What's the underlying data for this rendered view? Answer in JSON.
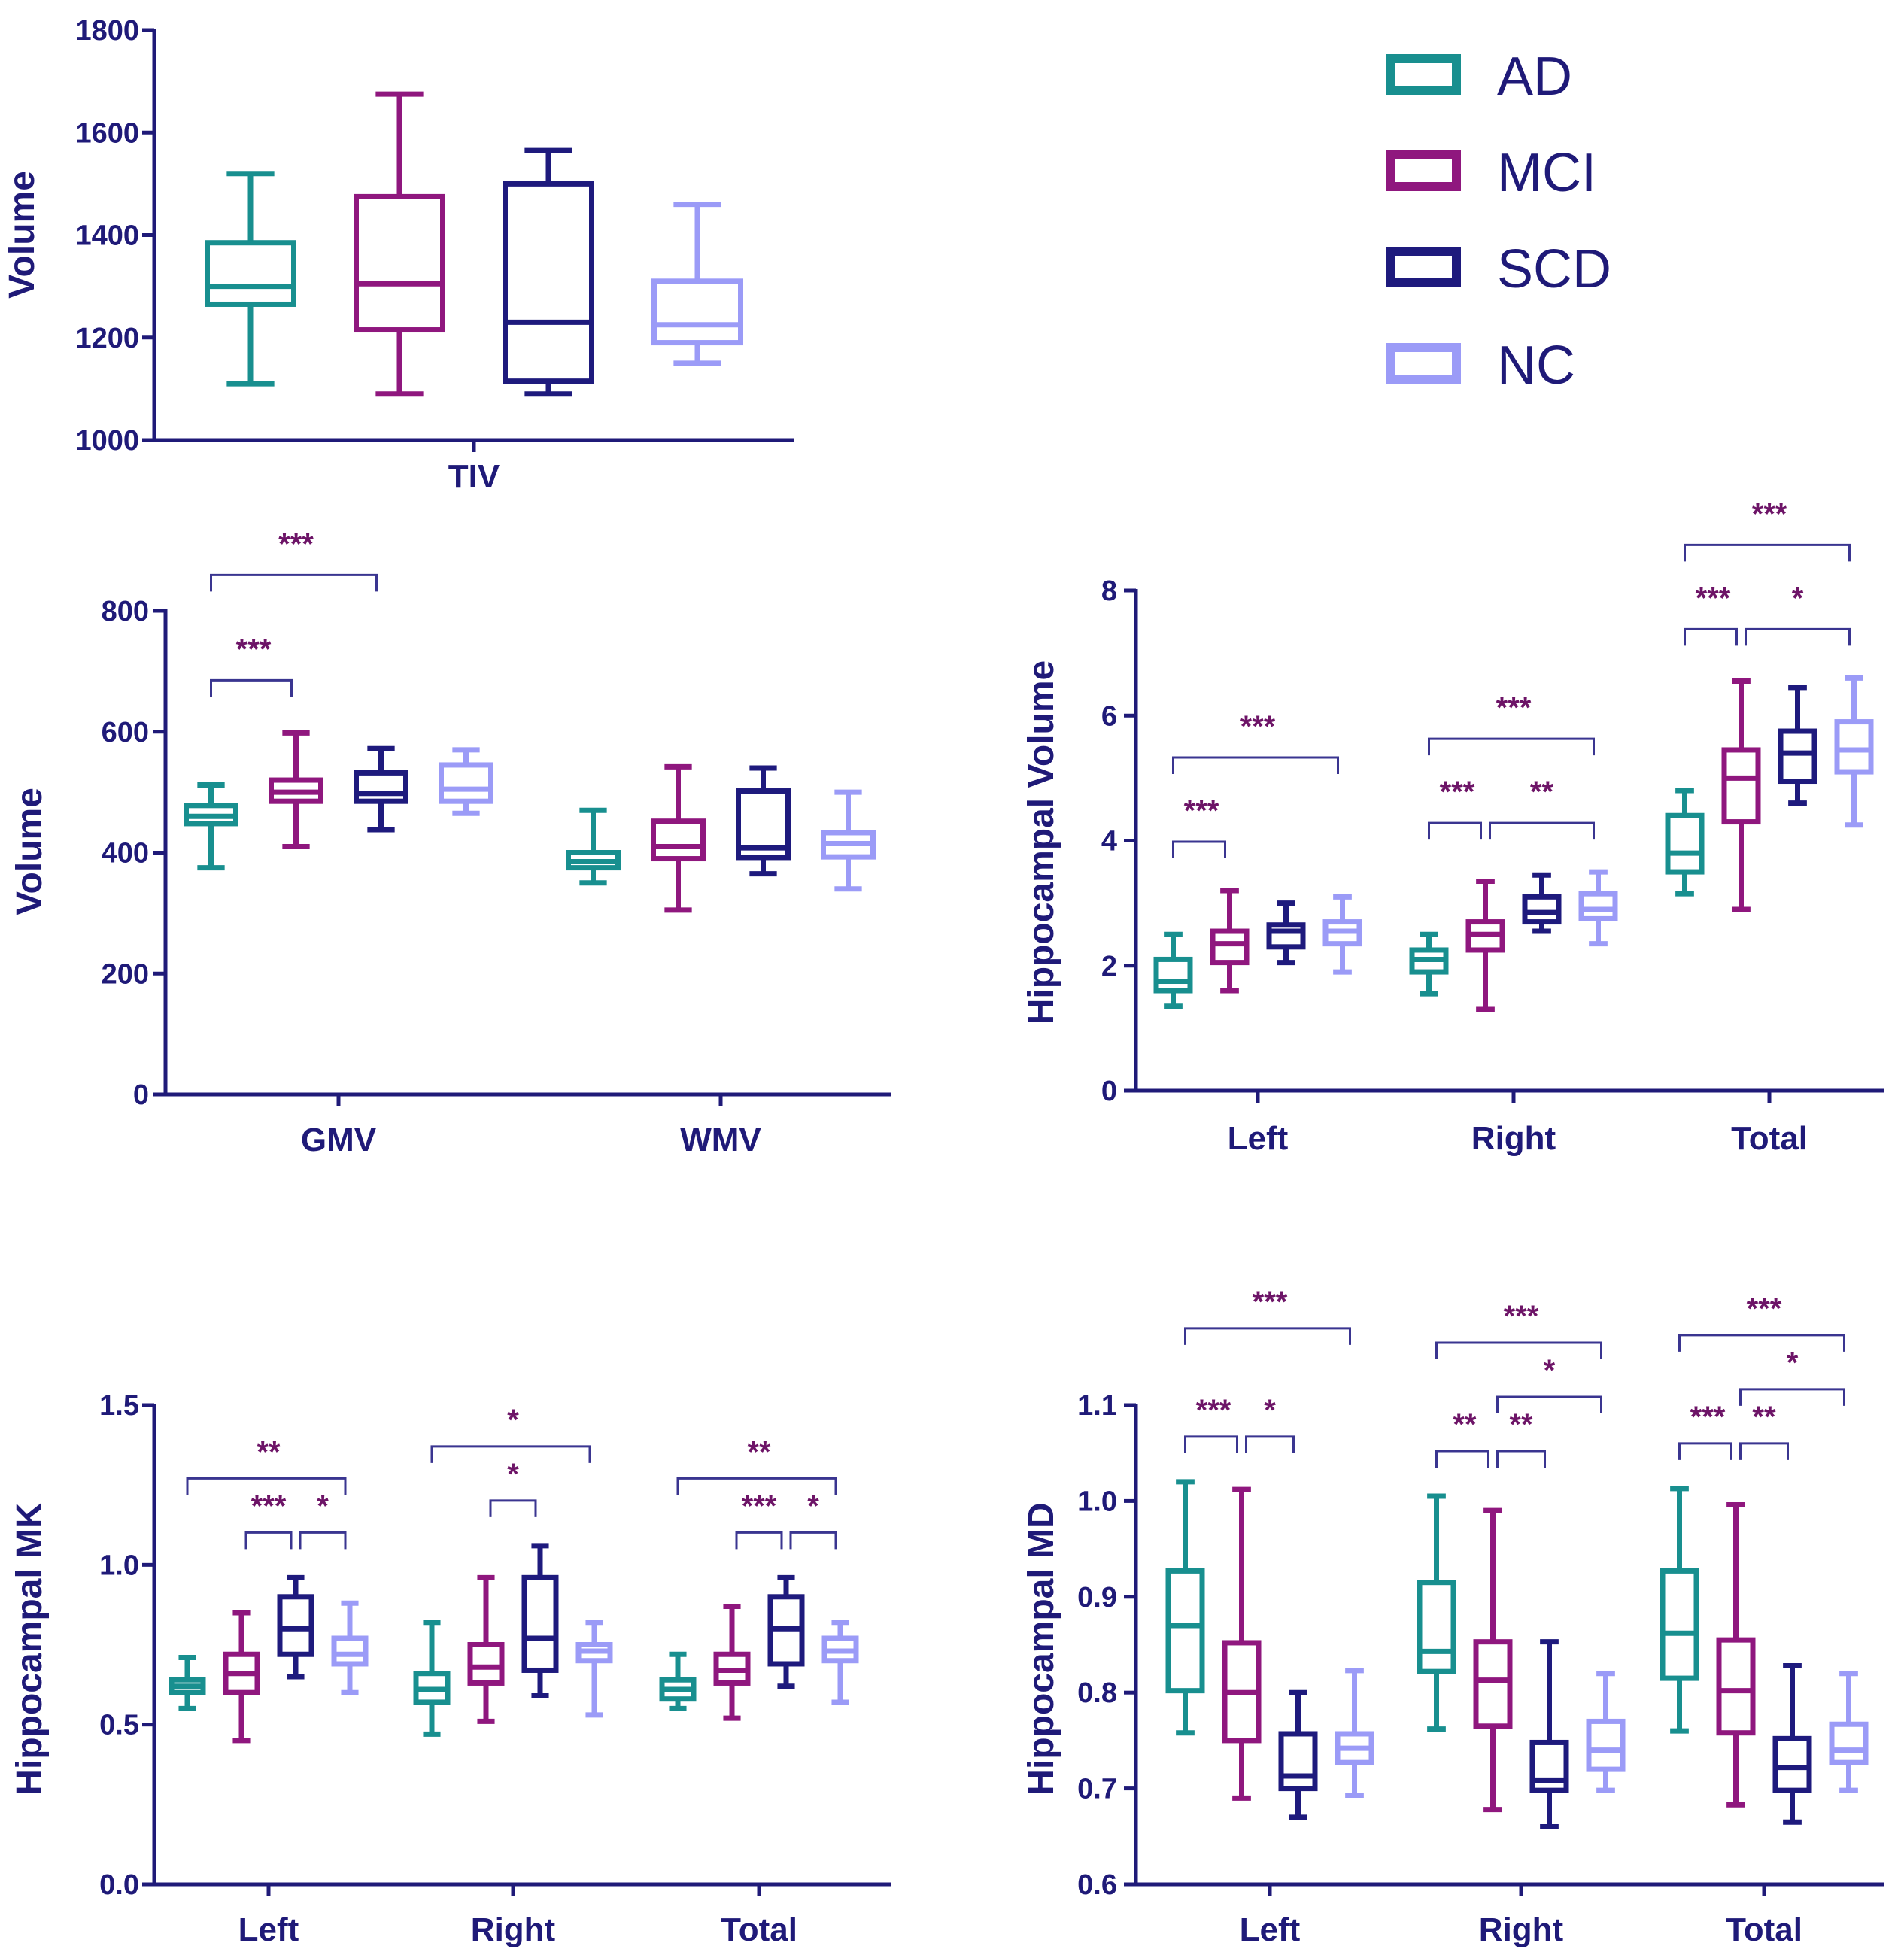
{
  "legend": [
    {
      "label": "AD",
      "color": "#188f8f"
    },
    {
      "label": "MCI",
      "color": "#8f177e"
    },
    {
      "label": "SCD",
      "color": "#1e1a7d"
    },
    {
      "label": "NC",
      "color": "#9b9bf7"
    }
  ],
  "chart_data": [
    {
      "id": "tiv",
      "type": "box",
      "title": "",
      "ylabel": "Volume",
      "ylim": [
        1000,
        1800
      ],
      "yticks": [
        "1000",
        "1200",
        "1400",
        "1600",
        "1800"
      ],
      "categories": [
        "TIV"
      ],
      "series": [
        {
          "name": "AD",
          "boxes": [
            {
              "min": 1110,
              "q1": 1265,
              "median": 1300,
              "q3": 1385,
              "max": 1520
            }
          ]
        },
        {
          "name": "MCI",
          "boxes": [
            {
              "min": 1090,
              "q1": 1215,
              "median": 1305,
              "q3": 1475,
              "max": 1675
            }
          ]
        },
        {
          "name": "SCD",
          "boxes": [
            {
              "min": 1090,
              "q1": 1115,
              "median": 1230,
              "q3": 1500,
              "max": 1565
            }
          ]
        },
        {
          "name": "NC",
          "boxes": [
            {
              "min": 1150,
              "q1": 1190,
              "median": 1225,
              "q3": 1310,
              "max": 1460
            }
          ]
        }
      ],
      "annotations": []
    },
    {
      "id": "gmv_wmv",
      "type": "box",
      "title": "",
      "ylabel": "Volume",
      "ylim": [
        0,
        800
      ],
      "yticks": [
        "0",
        "200",
        "400",
        "600",
        "800"
      ],
      "categories": [
        "GMV",
        "WMV"
      ],
      "series": [
        {
          "name": "AD",
          "boxes": [
            {
              "min": 375,
              "q1": 448,
              "median": 460,
              "q3": 478,
              "max": 512
            },
            {
              "min": 350,
              "q1": 375,
              "median": 385,
              "q3": 400,
              "max": 470
            }
          ]
        },
        {
          "name": "MCI",
          "boxes": [
            {
              "min": 410,
              "q1": 485,
              "median": 500,
              "q3": 520,
              "max": 598
            },
            {
              "min": 305,
              "q1": 390,
              "median": 410,
              "q3": 452,
              "max": 542
            }
          ]
        },
        {
          "name": "SCD",
          "boxes": [
            {
              "min": 438,
              "q1": 485,
              "median": 498,
              "q3": 532,
              "max": 572
            },
            {
              "min": 365,
              "q1": 392,
              "median": 408,
              "q3": 502,
              "max": 540
            }
          ]
        },
        {
          "name": "NC",
          "boxes": [
            {
              "min": 465,
              "q1": 485,
              "median": 505,
              "q3": 545,
              "max": 570
            },
            {
              "min": 340,
              "q1": 393,
              "median": 415,
              "q3": 433,
              "max": 500
            }
          ]
        }
      ],
      "annotations": [
        {
          "cat": 0,
          "from": 0,
          "to": 1,
          "level": 0,
          "label": "***"
        },
        {
          "cat": 0,
          "from": 0,
          "to": 2,
          "level": 1,
          "label": "***"
        }
      ]
    },
    {
      "id": "hippo_volume",
      "type": "box",
      "title": "",
      "ylabel": "Hippocampal Volume",
      "ylim": [
        0,
        8
      ],
      "yticks": [
        "0",
        "2",
        "4",
        "6",
        "8"
      ],
      "categories": [
        "Left",
        "Right",
        "Total"
      ],
      "series": [
        {
          "name": "AD",
          "boxes": [
            {
              "min": 1.35,
              "q1": 1.6,
              "median": 1.75,
              "q3": 2.1,
              "max": 2.5
            },
            {
              "min": 1.55,
              "q1": 1.9,
              "median": 2.1,
              "q3": 2.25,
              "max": 2.5
            },
            {
              "min": 3.15,
              "q1": 3.5,
              "median": 3.8,
              "q3": 4.4,
              "max": 4.8
            }
          ]
        },
        {
          "name": "MCI",
          "boxes": [
            {
              "min": 1.6,
              "q1": 2.05,
              "median": 2.35,
              "q3": 2.55,
              "max": 3.2
            },
            {
              "min": 1.3,
              "q1": 2.25,
              "median": 2.5,
              "q3": 2.7,
              "max": 3.35
            },
            {
              "min": 2.9,
              "q1": 4.3,
              "median": 5.0,
              "q3": 5.45,
              "max": 6.55
            }
          ]
        },
        {
          "name": "SCD",
          "boxes": [
            {
              "min": 2.05,
              "q1": 2.3,
              "median": 2.55,
              "q3": 2.65,
              "max": 3.0
            },
            {
              "min": 2.55,
              "q1": 2.7,
              "median": 2.85,
              "q3": 3.1,
              "max": 3.45
            },
            {
              "min": 4.6,
              "q1": 4.95,
              "median": 5.4,
              "q3": 5.75,
              "max": 6.45
            }
          ]
        },
        {
          "name": "NC",
          "boxes": [
            {
              "min": 1.9,
              "q1": 2.35,
              "median": 2.55,
              "q3": 2.7,
              "max": 3.1
            },
            {
              "min": 2.35,
              "q1": 2.75,
              "median": 2.9,
              "q3": 3.15,
              "max": 3.5
            },
            {
              "min": 4.25,
              "q1": 5.1,
              "median": 5.45,
              "q3": 5.9,
              "max": 6.6
            }
          ]
        }
      ],
      "annotations": [
        {
          "cat": 0,
          "from": 0,
          "to": 1,
          "level": 0,
          "label": "***"
        },
        {
          "cat": 0,
          "from": 0,
          "to": 3,
          "level": 1,
          "label": "***"
        },
        {
          "cat": 1,
          "from": 0,
          "to": 1,
          "level": 0,
          "label": "***"
        },
        {
          "cat": 1,
          "from": 1,
          "to": 3,
          "level": 0,
          "label": "**"
        },
        {
          "cat": 1,
          "from": 0,
          "to": 3,
          "level": 1,
          "label": "***"
        },
        {
          "cat": 2,
          "from": 0,
          "to": 1,
          "level": 0,
          "label": "***"
        },
        {
          "cat": 2,
          "from": 1,
          "to": 3,
          "level": 0,
          "label": "*"
        },
        {
          "cat": 2,
          "from": 0,
          "to": 3,
          "level": 1,
          "label": "***"
        }
      ]
    },
    {
      "id": "hippo_mk",
      "type": "box",
      "title": "",
      "ylabel": "Hippocampal MK",
      "ylim": [
        0,
        1.5
      ],
      "yticks": [
        "0.0",
        "0.5",
        "1.0",
        "1.5"
      ],
      "categories": [
        "Left",
        "Right",
        "Total"
      ],
      "series": [
        {
          "name": "AD",
          "boxes": [
            {
              "min": 0.55,
              "q1": 0.6,
              "median": 0.62,
              "q3": 0.64,
              "max": 0.71
            },
            {
              "min": 0.47,
              "q1": 0.57,
              "median": 0.61,
              "q3": 0.66,
              "max": 0.82
            },
            {
              "min": 0.55,
              "q1": 0.58,
              "median": 0.61,
              "q3": 0.64,
              "max": 0.72
            }
          ]
        },
        {
          "name": "MCI",
          "boxes": [
            {
              "min": 0.45,
              "q1": 0.6,
              "median": 0.66,
              "q3": 0.72,
              "max": 0.85
            },
            {
              "min": 0.51,
              "q1": 0.63,
              "median": 0.68,
              "q3": 0.75,
              "max": 0.96
            },
            {
              "min": 0.52,
              "q1": 0.63,
              "median": 0.67,
              "q3": 0.72,
              "max": 0.87
            }
          ]
        },
        {
          "name": "SCD",
          "boxes": [
            {
              "min": 0.65,
              "q1": 0.72,
              "median": 0.8,
              "q3": 0.9,
              "max": 0.96
            },
            {
              "min": 0.59,
              "q1": 0.67,
              "median": 0.77,
              "q3": 0.96,
              "max": 1.06
            },
            {
              "min": 0.62,
              "q1": 0.69,
              "median": 0.8,
              "q3": 0.9,
              "max": 0.96
            }
          ]
        },
        {
          "name": "NC",
          "boxes": [
            {
              "min": 0.6,
              "q1": 0.69,
              "median": 0.72,
              "q3": 0.77,
              "max": 0.88
            },
            {
              "min": 0.53,
              "q1": 0.7,
              "median": 0.73,
              "q3": 0.75,
              "max": 0.82
            },
            {
              "min": 0.57,
              "q1": 0.7,
              "median": 0.73,
              "q3": 0.77,
              "max": 0.82
            }
          ]
        }
      ],
      "annotations": [
        {
          "cat": 0,
          "from": 1,
          "to": 2,
          "level": 0,
          "label": "***"
        },
        {
          "cat": 0,
          "from": 2,
          "to": 3,
          "level": 0,
          "label": "*"
        },
        {
          "cat": 0,
          "from": 0,
          "to": 3,
          "level": 1,
          "label": "**"
        },
        {
          "cat": 1,
          "from": 1,
          "to": 2,
          "level": 0,
          "label": "*"
        },
        {
          "cat": 1,
          "from": 0,
          "to": 3,
          "level": 1,
          "label": "*"
        },
        {
          "cat": 2,
          "from": 1,
          "to": 2,
          "level": 0,
          "label": "***"
        },
        {
          "cat": 2,
          "from": 2,
          "to": 3,
          "level": 0,
          "label": "*"
        },
        {
          "cat": 2,
          "from": 0,
          "to": 3,
          "level": 1,
          "label": "**"
        }
      ]
    },
    {
      "id": "hippo_md",
      "type": "box",
      "title": "",
      "ylabel": "Hippocampal MD",
      "ylim": [
        0.6,
        1.1
      ],
      "yticks": [
        "0.6",
        "0.7",
        "0.8",
        "0.9",
        "1.0",
        "1.1"
      ],
      "categories": [
        "Left",
        "Right",
        "Total"
      ],
      "series": [
        {
          "name": "AD",
          "boxes": [
            {
              "min": 0.758,
              "q1": 0.802,
              "median": 0.87,
              "q3": 0.927,
              "max": 1.02
            },
            {
              "min": 0.762,
              "q1": 0.822,
              "median": 0.843,
              "q3": 0.915,
              "max": 1.005
            },
            {
              "min": 0.76,
              "q1": 0.815,
              "median": 0.862,
              "q3": 0.927,
              "max": 1.013
            }
          ]
        },
        {
          "name": "MCI",
          "boxes": [
            {
              "min": 0.69,
              "q1": 0.75,
              "median": 0.8,
              "q3": 0.852,
              "max": 1.012
            },
            {
              "min": 0.678,
              "q1": 0.765,
              "median": 0.813,
              "q3": 0.853,
              "max": 0.99
            },
            {
              "min": 0.683,
              "q1": 0.758,
              "median": 0.802,
              "q3": 0.855,
              "max": 0.996
            }
          ]
        },
        {
          "name": "SCD",
          "boxes": [
            {
              "min": 0.67,
              "q1": 0.7,
              "median": 0.713,
              "q3": 0.757,
              "max": 0.8
            },
            {
              "min": 0.66,
              "q1": 0.698,
              "median": 0.708,
              "q3": 0.748,
              "max": 0.853
            },
            {
              "min": 0.665,
              "q1": 0.698,
              "median": 0.722,
              "q3": 0.752,
              "max": 0.828
            }
          ]
        },
        {
          "name": "NC",
          "boxes": [
            {
              "min": 0.693,
              "q1": 0.727,
              "median": 0.742,
              "q3": 0.757,
              "max": 0.823
            },
            {
              "min": 0.698,
              "q1": 0.72,
              "median": 0.74,
              "q3": 0.77,
              "max": 0.82
            },
            {
              "min": 0.698,
              "q1": 0.727,
              "median": 0.74,
              "q3": 0.767,
              "max": 0.82
            }
          ]
        }
      ],
      "annotations": [
        {
          "cat": 0,
          "from": 0,
          "to": 1,
          "level": 0,
          "label": "***"
        },
        {
          "cat": 0,
          "from": 1,
          "to": 2,
          "level": 0,
          "label": "*"
        },
        {
          "cat": 0,
          "from": 0,
          "to": 3,
          "level": 2,
          "label": "***"
        },
        {
          "cat": 1,
          "from": 0,
          "to": 1,
          "level": 0,
          "label": "**"
        },
        {
          "cat": 1,
          "from": 1,
          "to": 2,
          "level": 0,
          "label": "**"
        },
        {
          "cat": 1,
          "from": 1,
          "to": 3,
          "level": 1,
          "label": "*"
        },
        {
          "cat": 1,
          "from": 0,
          "to": 3,
          "level": 2,
          "label": "***"
        },
        {
          "cat": 2,
          "from": 0,
          "to": 1,
          "level": 0,
          "label": "***"
        },
        {
          "cat": 2,
          "from": 1,
          "to": 2,
          "level": 0,
          "label": "**"
        },
        {
          "cat": 2,
          "from": 1,
          "to": 3,
          "level": 1,
          "label": "*"
        },
        {
          "cat": 2,
          "from": 0,
          "to": 3,
          "level": 2,
          "label": "***"
        }
      ]
    }
  ]
}
